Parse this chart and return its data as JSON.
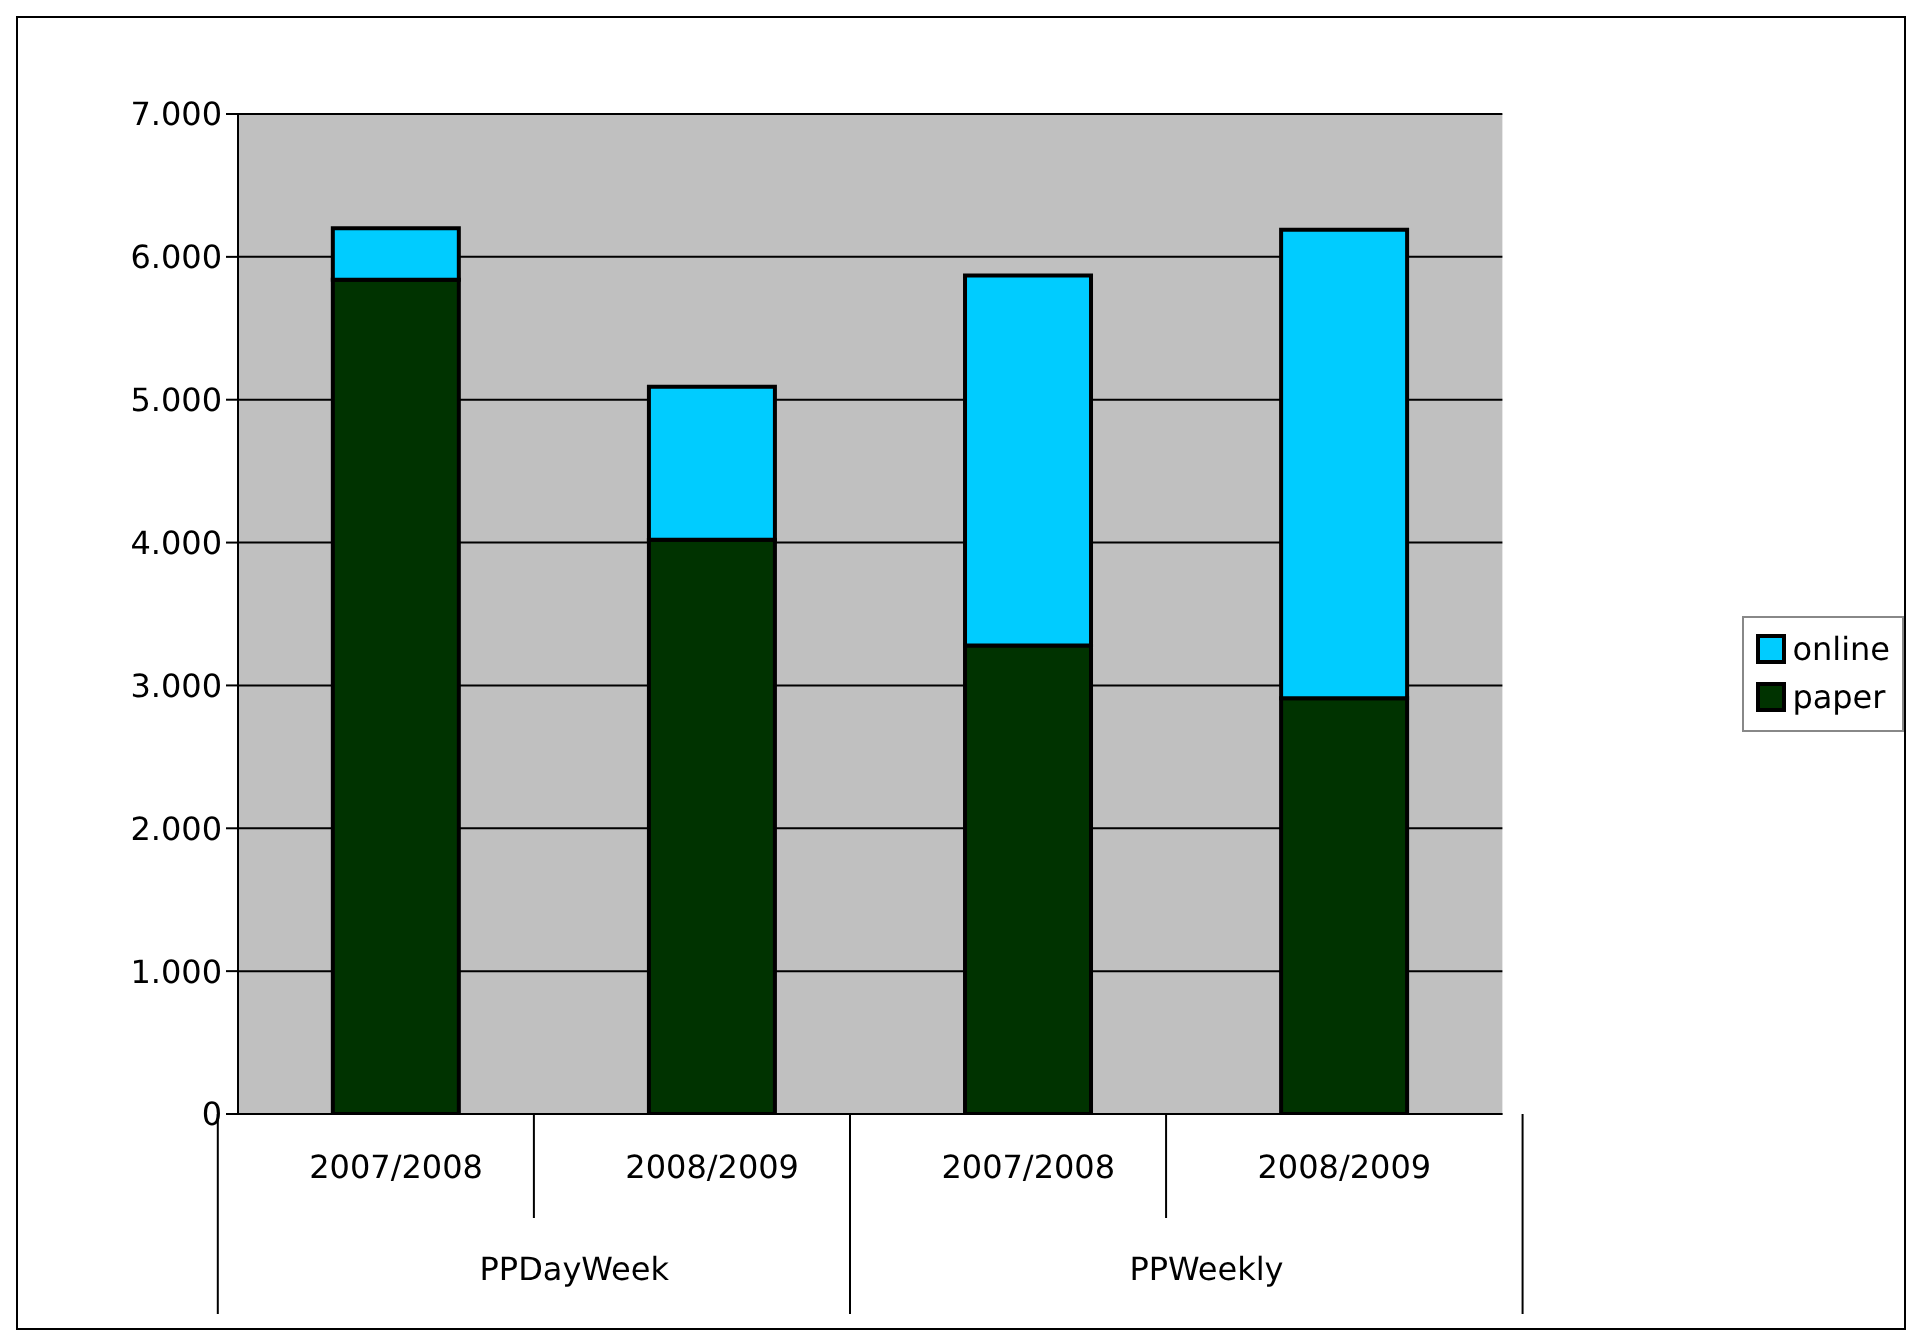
{
  "chart_data": {
    "type": "bar",
    "stacked": true,
    "categories": [
      "2007/2008",
      "2008/2009",
      "2007/2008",
      "2008/2009"
    ],
    "series": [
      {
        "name": "paper",
        "color": "#003300",
        "values": [
          5840,
          4020,
          3280,
          2910
        ]
      },
      {
        "name": "online",
        "color": "#00ccff",
        "values": [
          360,
          1070,
          2590,
          3280
        ]
      }
    ],
    "annotations": [
      "PPDayWeek",
      "PPWeekly"
    ],
    "ylim": [
      0,
      7000
    ],
    "yticks": [
      0,
      {
        "value": 1000,
        "label": "1.000"
      },
      {
        "value": 2000,
        "label": "2.000"
      },
      {
        "value": 3000,
        "label": "3.000"
      },
      {
        "value": 4000,
        "label": "4.000"
      },
      {
        "value": 5000,
        "label": "5.000"
      },
      {
        "value": 6000,
        "label": "6.000"
      },
      {
        "value": 7000,
        "label": "7.000"
      }
    ],
    "grid": "y",
    "legend": "right"
  }
}
